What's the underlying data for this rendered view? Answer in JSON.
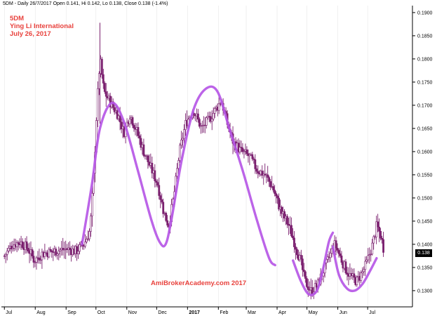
{
  "header": {
    "text": "5DM - Daily 26/7/2017 Open 0.141, Hi 0.142, Lo 0.138, Close 0.138 (-1.4%)"
  },
  "annotations": {
    "ticker": "5DM",
    "company": "Ying Li International",
    "date": "July 26, 2017",
    "watermark": "AmiBrokerAcademy.com  2017"
  },
  "last_price_label": "0.138",
  "colors": {
    "background": "#ffffff",
    "candles": "#7a1f6e",
    "pattern_curve": "#b657e6",
    "annotation_text": "#e8413c"
  },
  "chart_data": {
    "type": "candlestick",
    "title": "5DM",
    "y_axis_position": "right",
    "ylim": [
      0.1265,
      0.1915
    ],
    "y_ticks": [
      0.13,
      0.135,
      0.14,
      0.145,
      0.15,
      0.155,
      0.16,
      0.165,
      0.17,
      0.175,
      0.18,
      0.185,
      0.19
    ],
    "y_tick_labels": [
      "0.1300",
      "0.1350",
      "0.1400",
      "0.1450",
      "0.1500",
      "0.1550",
      "0.1600",
      "0.1650",
      "0.1700",
      "0.1750",
      "0.1800",
      "0.1850",
      "0.1900"
    ],
    "x_labels": [
      {
        "label": "Jul",
        "day": 0
      },
      {
        "label": "Aug",
        "day": 31
      },
      {
        "label": "Sep",
        "day": 62
      },
      {
        "label": "Oct",
        "day": 92
      },
      {
        "label": "Nov",
        "day": 123
      },
      {
        "label": "Dec",
        "day": 153
      },
      {
        "label": "2017",
        "day": 184,
        "bold": true
      },
      {
        "label": "Feb",
        "day": 215
      },
      {
        "label": "Mar",
        "day": 243
      },
      {
        "label": "Apr",
        "day": 274
      },
      {
        "label": "May",
        "day": 304
      },
      {
        "label": "Jun",
        "day": 335
      },
      {
        "label": "Jul",
        "day": 365
      }
    ],
    "x_range_days": [
      -3,
      410
    ],
    "close_anchors": [
      [
        0,
        0.1375
      ],
      [
        8,
        0.14
      ],
      [
        16,
        0.1405
      ],
      [
        24,
        0.139
      ],
      [
        30,
        0.1365
      ],
      [
        38,
        0.138
      ],
      [
        50,
        0.1385
      ],
      [
        62,
        0.139
      ],
      [
        72,
        0.1385
      ],
      [
        80,
        0.14
      ],
      [
        86,
        0.143
      ],
      [
        90,
        0.156
      ],
      [
        93,
        0.17
      ],
      [
        96,
        0.18
      ],
      [
        100,
        0.173
      ],
      [
        108,
        0.17
      ],
      [
        114,
        0.168
      ],
      [
        120,
        0.164
      ],
      [
        126,
        0.168
      ],
      [
        132,
        0.165
      ],
      [
        140,
        0.16
      ],
      [
        148,
        0.156
      ],
      [
        154,
        0.153
      ],
      [
        160,
        0.147
      ],
      [
        165,
        0.144
      ],
      [
        170,
        0.15
      ],
      [
        176,
        0.16
      ],
      [
        182,
        0.166
      ],
      [
        190,
        0.169
      ],
      [
        198,
        0.165
      ],
      [
        206,
        0.167
      ],
      [
        212,
        0.169
      ],
      [
        218,
        0.171
      ],
      [
        224,
        0.166
      ],
      [
        230,
        0.162
      ],
      [
        238,
        0.16
      ],
      [
        246,
        0.159
      ],
      [
        254,
        0.156
      ],
      [
        262,
        0.155
      ],
      [
        270,
        0.152
      ],
      [
        278,
        0.147
      ],
      [
        286,
        0.144
      ],
      [
        292,
        0.14
      ],
      [
        298,
        0.136
      ],
      [
        302,
        0.132
      ],
      [
        308,
        0.13
      ],
      [
        314,
        0.131
      ],
      [
        320,
        0.134
      ],
      [
        326,
        0.137
      ],
      [
        332,
        0.14
      ],
      [
        336,
        0.138
      ],
      [
        342,
        0.135
      ],
      [
        348,
        0.133
      ],
      [
        354,
        0.132
      ],
      [
        360,
        0.134
      ],
      [
        364,
        0.136
      ],
      [
        370,
        0.14
      ],
      [
        374,
        0.144
      ],
      [
        378,
        0.142
      ],
      [
        382,
        0.138
      ]
    ],
    "pattern_curves": [
      [
        [
          78,
          0.14
        ],
        [
          88,
          0.153
        ],
        [
          96,
          0.165
        ],
        [
          108,
          0.1705
        ],
        [
          120,
          0.1665
        ],
        [
          134,
          0.156
        ],
        [
          148,
          0.145
        ],
        [
          156,
          0.1405
        ],
        [
          162,
          0.14
        ],
        [
          168,
          0.1455
        ],
        [
          178,
          0.158
        ],
        [
          190,
          0.169
        ],
        [
          202,
          0.1735
        ],
        [
          214,
          0.173
        ],
        [
          226,
          0.165
        ],
        [
          240,
          0.1555
        ],
        [
          254,
          0.145
        ],
        [
          266,
          0.137
        ],
        [
          272,
          0.1355
        ]
      ],
      [
        [
          290,
          0.1365
        ],
        [
          298,
          0.132
        ],
        [
          306,
          0.1292
        ],
        [
          314,
          0.13
        ],
        [
          320,
          0.1345
        ],
        [
          326,
          0.1405
        ],
        [
          330,
          0.1425
        ]
      ],
      [
        [
          330,
          0.1395
        ],
        [
          336,
          0.1335
        ],
        [
          344,
          0.1305
        ],
        [
          352,
          0.13
        ],
        [
          360,
          0.1315
        ],
        [
          368,
          0.1345
        ],
        [
          374,
          0.137
        ]
      ]
    ]
  }
}
